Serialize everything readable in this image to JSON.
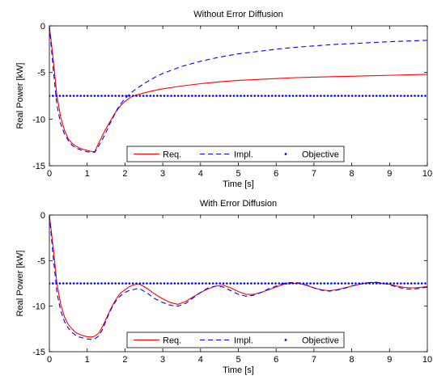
{
  "chart_data": [
    {
      "type": "line",
      "title": "Without Error Diffusion",
      "xlabel": "Time [s]",
      "ylabel": "Real Power [kW]",
      "xlim": [
        0,
        10
      ],
      "ylim": [
        -15,
        0
      ],
      "xticks": [
        "0",
        "1",
        "2",
        "3",
        "4",
        "5",
        "6",
        "7",
        "8",
        "9",
        "10"
      ],
      "yticks": [
        "0",
        "-5",
        "-10",
        "-15"
      ],
      "grid": false,
      "legend_position": "bottom-center",
      "series": [
        {
          "name": "Req.",
          "color": "#ff0000",
          "style": "solid",
          "x": [
            0,
            0.1,
            0.2,
            0.3,
            0.4,
            0.5,
            0.6,
            0.7,
            0.8,
            0.9,
            1.0,
            1.1,
            1.2,
            1.3,
            1.4,
            1.5,
            1.6,
            1.7,
            1.8,
            1.9,
            2.0,
            2.1,
            2.2,
            2.3,
            2.5,
            2.75,
            3.0,
            3.5,
            4.0,
            4.5,
            5.0,
            5.5,
            6.0,
            6.5,
            7.0,
            7.5,
            8.0,
            8.5,
            9.0,
            9.5,
            10.0
          ],
          "y": [
            0,
            -3.5,
            -7.5,
            -9.8,
            -11.2,
            -12.1,
            -12.6,
            -12.9,
            -13.1,
            -13.25,
            -13.35,
            -13.45,
            -13.5,
            -12.6,
            -11.8,
            -11.0,
            -10.3,
            -9.6,
            -9.0,
            -8.5,
            -8.1,
            -7.8,
            -7.55,
            -7.4,
            -7.2,
            -6.95,
            -6.75,
            -6.45,
            -6.2,
            -6.0,
            -5.85,
            -5.75,
            -5.65,
            -5.55,
            -5.5,
            -5.45,
            -5.4,
            -5.35,
            -5.3,
            -5.25,
            -5.2
          ]
        },
        {
          "name": "Impl.",
          "color": "#0000ff",
          "style": "dashed",
          "x": [
            0,
            0.1,
            0.2,
            0.3,
            0.4,
            0.5,
            0.6,
            0.7,
            0.8,
            0.9,
            1.0,
            1.1,
            1.2,
            1.3,
            1.4,
            1.5,
            1.6,
            1.7,
            1.8,
            1.9,
            2.0,
            2.1,
            2.2,
            2.3,
            2.5,
            2.75,
            3.0,
            3.5,
            4.0,
            4.5,
            5.0,
            5.5,
            6.0,
            6.5,
            7.0,
            7.5,
            8.0,
            8.5,
            9.0,
            9.5,
            10.0
          ],
          "y": [
            0,
            -4.5,
            -8.5,
            -10.5,
            -11.6,
            -12.3,
            -12.8,
            -13.1,
            -13.25,
            -13.4,
            -13.5,
            -13.55,
            -13.55,
            -12.9,
            -12.2,
            -11.4,
            -10.5,
            -9.7,
            -8.9,
            -8.3,
            -7.8,
            -7.4,
            -7.05,
            -6.75,
            -6.2,
            -5.6,
            -5.1,
            -4.35,
            -3.8,
            -3.35,
            -3.0,
            -2.75,
            -2.5,
            -2.3,
            -2.15,
            -2.0,
            -1.9,
            -1.8,
            -1.7,
            -1.62,
            -1.55
          ]
        },
        {
          "name": "Objective",
          "color": "#0000ff",
          "style": "dotted",
          "x": [
            0,
            10
          ],
          "y": [
            -7.5,
            -7.5
          ]
        }
      ]
    },
    {
      "type": "line",
      "title": "With Error Diffusion",
      "xlabel": "Time [s]",
      "ylabel": "Real Power [kW]",
      "xlim": [
        0,
        10
      ],
      "ylim": [
        -15,
        0
      ],
      "xticks": [
        "0",
        "1",
        "2",
        "3",
        "4",
        "5",
        "6",
        "7",
        "8",
        "9",
        "10"
      ],
      "yticks": [
        "0",
        "-5",
        "-10",
        "-15"
      ],
      "grid": false,
      "legend_position": "bottom-center",
      "series": [
        {
          "name": "Req.",
          "color": "#ff0000",
          "style": "solid",
          "x": [
            0,
            0.1,
            0.2,
            0.3,
            0.4,
            0.5,
            0.6,
            0.7,
            0.8,
            0.9,
            1.0,
            1.1,
            1.2,
            1.3,
            1.4,
            1.5,
            1.6,
            1.7,
            1.8,
            1.9,
            2.0,
            2.1,
            2.2,
            2.3,
            2.4,
            2.6,
            2.8,
            3.0,
            3.2,
            3.4,
            3.6,
            3.8,
            4.0,
            4.2,
            4.4,
            4.6,
            4.8,
            5.0,
            5.2,
            5.4,
            5.6,
            5.8,
            6.0,
            6.2,
            6.4,
            6.6,
            6.8,
            7.0,
            7.2,
            7.4,
            7.6,
            7.8,
            8.0,
            8.2,
            8.4,
            8.6,
            8.8,
            9.0,
            9.2,
            9.4,
            9.6,
            9.8,
            10.0
          ],
          "y": [
            0,
            -3.5,
            -7.5,
            -9.8,
            -11.2,
            -12.0,
            -12.5,
            -12.9,
            -13.1,
            -13.25,
            -13.35,
            -13.4,
            -13.3,
            -13.0,
            -12.3,
            -11.4,
            -10.5,
            -9.7,
            -9.0,
            -8.5,
            -8.2,
            -7.9,
            -7.7,
            -7.6,
            -7.6,
            -8.1,
            -8.7,
            -9.2,
            -9.6,
            -9.8,
            -9.5,
            -9.0,
            -8.5,
            -8.1,
            -7.8,
            -7.7,
            -8.0,
            -8.4,
            -8.7,
            -8.7,
            -8.5,
            -8.2,
            -7.9,
            -7.6,
            -7.5,
            -7.5,
            -7.7,
            -8.0,
            -8.2,
            -8.3,
            -8.2,
            -8.0,
            -7.8,
            -7.6,
            -7.45,
            -7.4,
            -7.5,
            -7.6,
            -7.8,
            -7.95,
            -8.0,
            -7.95,
            -7.85
          ]
        },
        {
          "name": "Impl.",
          "color": "#0000ff",
          "style": "dashed",
          "x": [
            0,
            0.1,
            0.2,
            0.3,
            0.4,
            0.5,
            0.6,
            0.7,
            0.8,
            0.9,
            1.0,
            1.1,
            1.2,
            1.3,
            1.4,
            1.5,
            1.6,
            1.7,
            1.8,
            1.9,
            2.0,
            2.1,
            2.2,
            2.3,
            2.4,
            2.6,
            2.8,
            3.0,
            3.2,
            3.4,
            3.6,
            3.8,
            4.0,
            4.2,
            4.4,
            4.6,
            4.8,
            5.0,
            5.2,
            5.4,
            5.6,
            5.8,
            6.0,
            6.2,
            6.4,
            6.6,
            6.8,
            7.0,
            7.2,
            7.4,
            7.6,
            7.8,
            8.0,
            8.2,
            8.4,
            8.6,
            8.8,
            9.0,
            9.2,
            9.4,
            9.6,
            9.8,
            10.0
          ],
          "y": [
            0,
            -4.5,
            -8.5,
            -10.5,
            -11.7,
            -12.4,
            -12.9,
            -13.2,
            -13.4,
            -13.5,
            -13.6,
            -13.65,
            -13.6,
            -13.3,
            -12.6,
            -11.6,
            -10.6,
            -9.8,
            -9.2,
            -8.8,
            -8.5,
            -8.3,
            -8.2,
            -8.1,
            -8.1,
            -8.6,
            -9.2,
            -9.6,
            -9.9,
            -10.0,
            -9.7,
            -9.1,
            -8.5,
            -8.0,
            -7.8,
            -7.9,
            -8.3,
            -8.7,
            -8.9,
            -8.8,
            -8.5,
            -8.1,
            -7.8,
            -7.5,
            -7.4,
            -7.45,
            -7.7,
            -8.0,
            -8.25,
            -8.35,
            -8.25,
            -8.05,
            -7.8,
            -7.6,
            -7.45,
            -7.35,
            -7.45,
            -7.65,
            -7.9,
            -8.1,
            -8.15,
            -8.05,
            -7.9
          ]
        },
        {
          "name": "Objective",
          "color": "#0000ff",
          "style": "dotted",
          "x": [
            0,
            10
          ],
          "y": [
            -7.5,
            -7.5
          ]
        }
      ]
    }
  ]
}
